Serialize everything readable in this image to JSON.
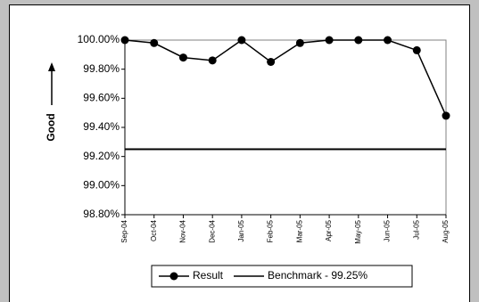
{
  "chart_data": {
    "type": "line",
    "y_axis_label": "Good",
    "categories": [
      "Sep-04",
      "Oct-04",
      "Nov-04",
      "Dec-04",
      "Jan-05",
      "Feb-05",
      "Mar-05",
      "Apr-05",
      "May-05",
      "Jun-05",
      "Jul-05",
      "Aug-05"
    ],
    "series": [
      {
        "name": "Result",
        "color": "#000000",
        "marker": "circle",
        "values": [
          100.0,
          99.98,
          99.88,
          99.86,
          100.0,
          99.85,
          99.98,
          100.0,
          100.0,
          100.0,
          99.93,
          99.48
        ]
      },
      {
        "name": "Benchmark - 99.25%",
        "color": "#000000",
        "marker": "none",
        "values": [
          99.25,
          99.25,
          99.25,
          99.25,
          99.25,
          99.25,
          99.25,
          99.25,
          99.25,
          99.25,
          99.25,
          99.25
        ]
      }
    ],
    "ylim": [
      98.8,
      100
    ],
    "yticks": [
      {
        "value": 98.8,
        "label": "98.80%"
      },
      {
        "value": 99.0,
        "label": "99.00%"
      },
      {
        "value": 99.2,
        "label": "99.20%"
      },
      {
        "value": 99.4,
        "label": "99.40%"
      },
      {
        "value": 99.6,
        "label": "99.60%"
      },
      {
        "value": 99.8,
        "label": "99.80%"
      },
      {
        "value": 100.0,
        "label": "100.00%"
      }
    ],
    "legend": "bottom"
  }
}
